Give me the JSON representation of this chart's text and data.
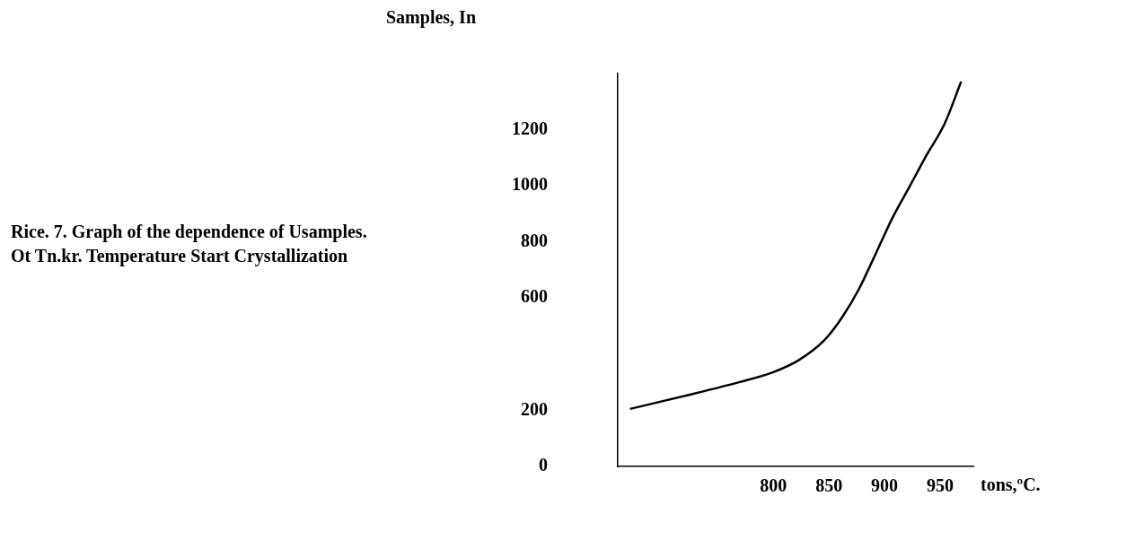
{
  "chart_data": {
    "type": "line",
    "ylabel": "Samples, In",
    "xlabel": "tons,ºC.",
    "annotations": [
      "Rice. 7. Graph of the dependence of Usamples. Ot Tn.kr. Temperature Start Crystallization"
    ],
    "x": [
      671,
      723,
      769,
      800,
      823,
      846,
      862,
      877,
      892,
      908,
      923,
      938,
      954,
      969
    ],
    "series": [
      {
        "color": "#000000",
        "values": [
          205,
          254,
          300,
          336,
          379,
          450,
          532,
          632,
          757,
          892,
          1000,
          1110,
          1220,
          1371
        ]
      }
    ],
    "xlim": [
      660,
      980
    ],
    "xticks": [
      800,
      850,
      900,
      950
    ],
    "ylim": [
      0,
      1400
    ],
    "yticks": [
      0,
      200,
      600,
      800,
      1000,
      1200
    ],
    "grid": false,
    "legend": false,
    "marker": "none",
    "line_style": "solid"
  }
}
